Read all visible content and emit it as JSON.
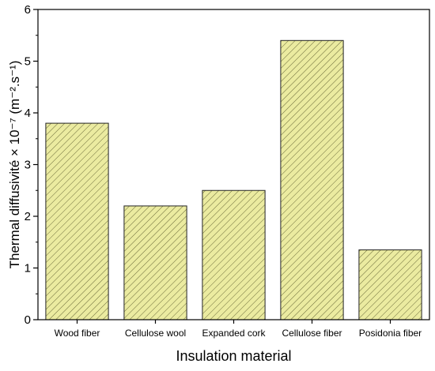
{
  "chart_data": {
    "type": "bar",
    "categories": [
      "Wood fiber",
      "Cellulose wool",
      "Expanded cork",
      "Cellulose fiber",
      "Posidonia fiber"
    ],
    "values": [
      3.8,
      2.2,
      2.5,
      5.4,
      1.35
    ],
    "title": "",
    "xlabel": "Insulation material",
    "ylabel": "Thermal diffusivité × 10⁻⁷ (m⁻².s⁻¹)",
    "ylim": [
      0,
      6
    ],
    "yticks": [
      0,
      1,
      2,
      3,
      4,
      5,
      6
    ],
    "grid": false,
    "legend": "none",
    "colors": {
      "bar_fill": "#ebeba0",
      "bar_stroke": "#222222",
      "hatch": "#6b6b3a",
      "axis": "#000000"
    }
  }
}
